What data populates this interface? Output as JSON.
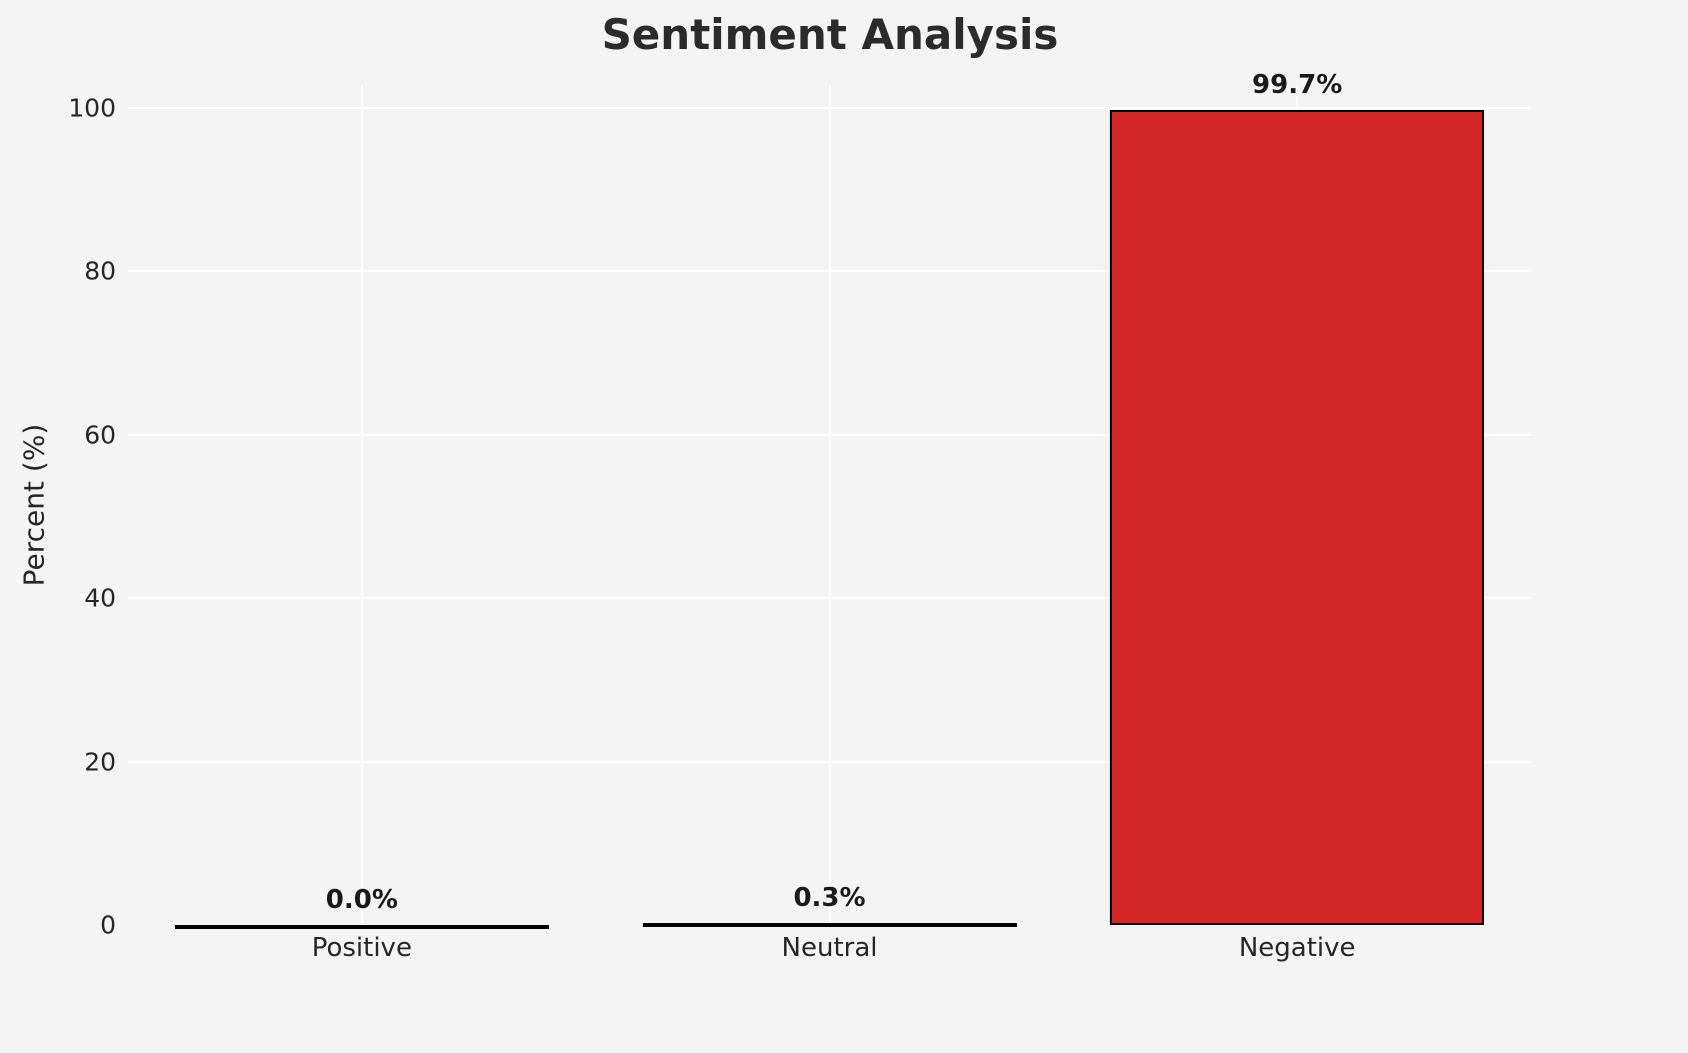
{
  "chart_data": {
    "type": "bar",
    "title": "Sentiment Analysis",
    "categories": [
      "Positive",
      "Neutral",
      "Negative"
    ],
    "values": [
      0.0,
      0.3,
      99.7
    ],
    "value_labels": [
      "0.0%",
      "0.3%",
      "99.7%"
    ],
    "xlabel": "",
    "ylabel": "Percent (%)",
    "ylim": [
      0,
      100
    ],
    "yticks": [
      0,
      20,
      40,
      60,
      80,
      100
    ],
    "grid": true,
    "legend": false,
    "bar_color": "#d62728",
    "bar_edge_color": "#000000",
    "background_color": "#f4f4f5",
    "gridline_color": "#ffffff"
  }
}
